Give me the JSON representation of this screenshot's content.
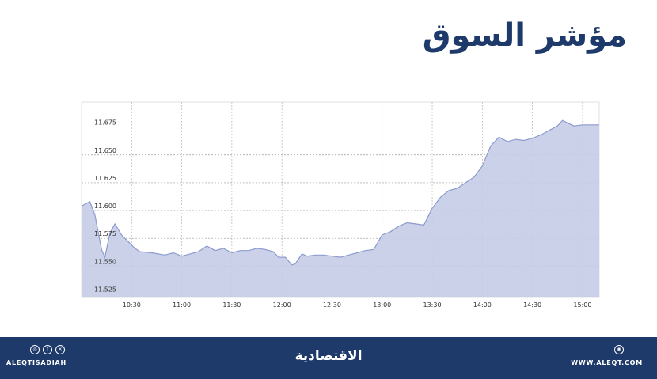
{
  "title": "مؤشر السوق",
  "footer": {
    "social_handle": "ALEQTISADIAH",
    "brand": "الاقتصادية",
    "website": "WWW.ALEQT.COM",
    "social_icons": [
      "instagram-icon",
      "facebook-icon",
      "x-icon"
    ],
    "site_icon": "globe-icon"
  },
  "colors": {
    "title": "#1d3a6b",
    "footer_bg": "#1d3a6b",
    "area_fill": "#c4cce6",
    "line": "#8d9bcf"
  },
  "chart_data": {
    "type": "area",
    "title": "",
    "xlabel": "",
    "ylabel": "",
    "grid": true,
    "x_ticks": [
      "10:30",
      "11:00",
      "11:30",
      "12:00",
      "12:30",
      "13:00",
      "13:30",
      "14:00",
      "14:30",
      "15:00"
    ],
    "y_ticks": [
      "11.525",
      "11.550",
      "11.575",
      "11.600",
      "11.625",
      "11.650",
      "11.675"
    ],
    "xlim": [
      "10:00",
      "15:10"
    ],
    "ylim": [
      11.5225,
      11.6975
    ],
    "series": [
      {
        "x": [
          "10:00",
          "10:05",
          "10:08",
          "10:12",
          "10:14",
          "10:17",
          "10:20",
          "10:24",
          "10:28",
          "10:32",
          "10:35",
          "10:42",
          "10:50",
          "10:55",
          "11:00",
          "11:05",
          "11:10",
          "11:15",
          "11:20",
          "11:25",
          "11:30",
          "11:35",
          "11:40",
          "11:45",
          "11:50",
          "11:55",
          "11:58",
          "12:02",
          "12:06",
          "12:08",
          "12:12",
          "12:15",
          "12:20",
          "12:25",
          "12:30",
          "12:35",
          "12:40",
          "12:45",
          "12:50",
          "12:55",
          "13:00",
          "13:05",
          "13:10",
          "13:15",
          "13:20",
          "13:25",
          "13:30",
          "13:35",
          "13:40",
          "13:45",
          "13:50",
          "13:55",
          "14:00",
          "14:05",
          "14:10",
          "14:15",
          "14:20",
          "14:25",
          "14:30",
          "14:35",
          "14:40",
          "14:45",
          "14:48",
          "14:52",
          "14:55",
          "15:00",
          "15:05",
          "15:10"
        ],
        "y": [
          11.604,
          11.608,
          11.596,
          11.565,
          11.558,
          11.58,
          11.588,
          11.578,
          11.572,
          11.566,
          11.563,
          11.562,
          11.56,
          11.562,
          11.559,
          11.561,
          11.563,
          11.568,
          11.564,
          11.566,
          11.562,
          11.564,
          11.564,
          11.566,
          11.565,
          11.563,
          11.558,
          11.558,
          11.551,
          11.552,
          11.561,
          11.559,
          11.56,
          11.56,
          11.559,
          11.558,
          11.56,
          11.562,
          11.564,
          11.565,
          11.578,
          11.581,
          11.586,
          11.589,
          11.588,
          11.587,
          11.602,
          11.612,
          11.618,
          11.62,
          11.625,
          11.63,
          11.64,
          11.658,
          11.666,
          11.662,
          11.664,
          11.663,
          11.665,
          11.668,
          11.672,
          11.676,
          11.681,
          11.678,
          11.676,
          11.677,
          11.677,
          11.677
        ]
      }
    ]
  }
}
